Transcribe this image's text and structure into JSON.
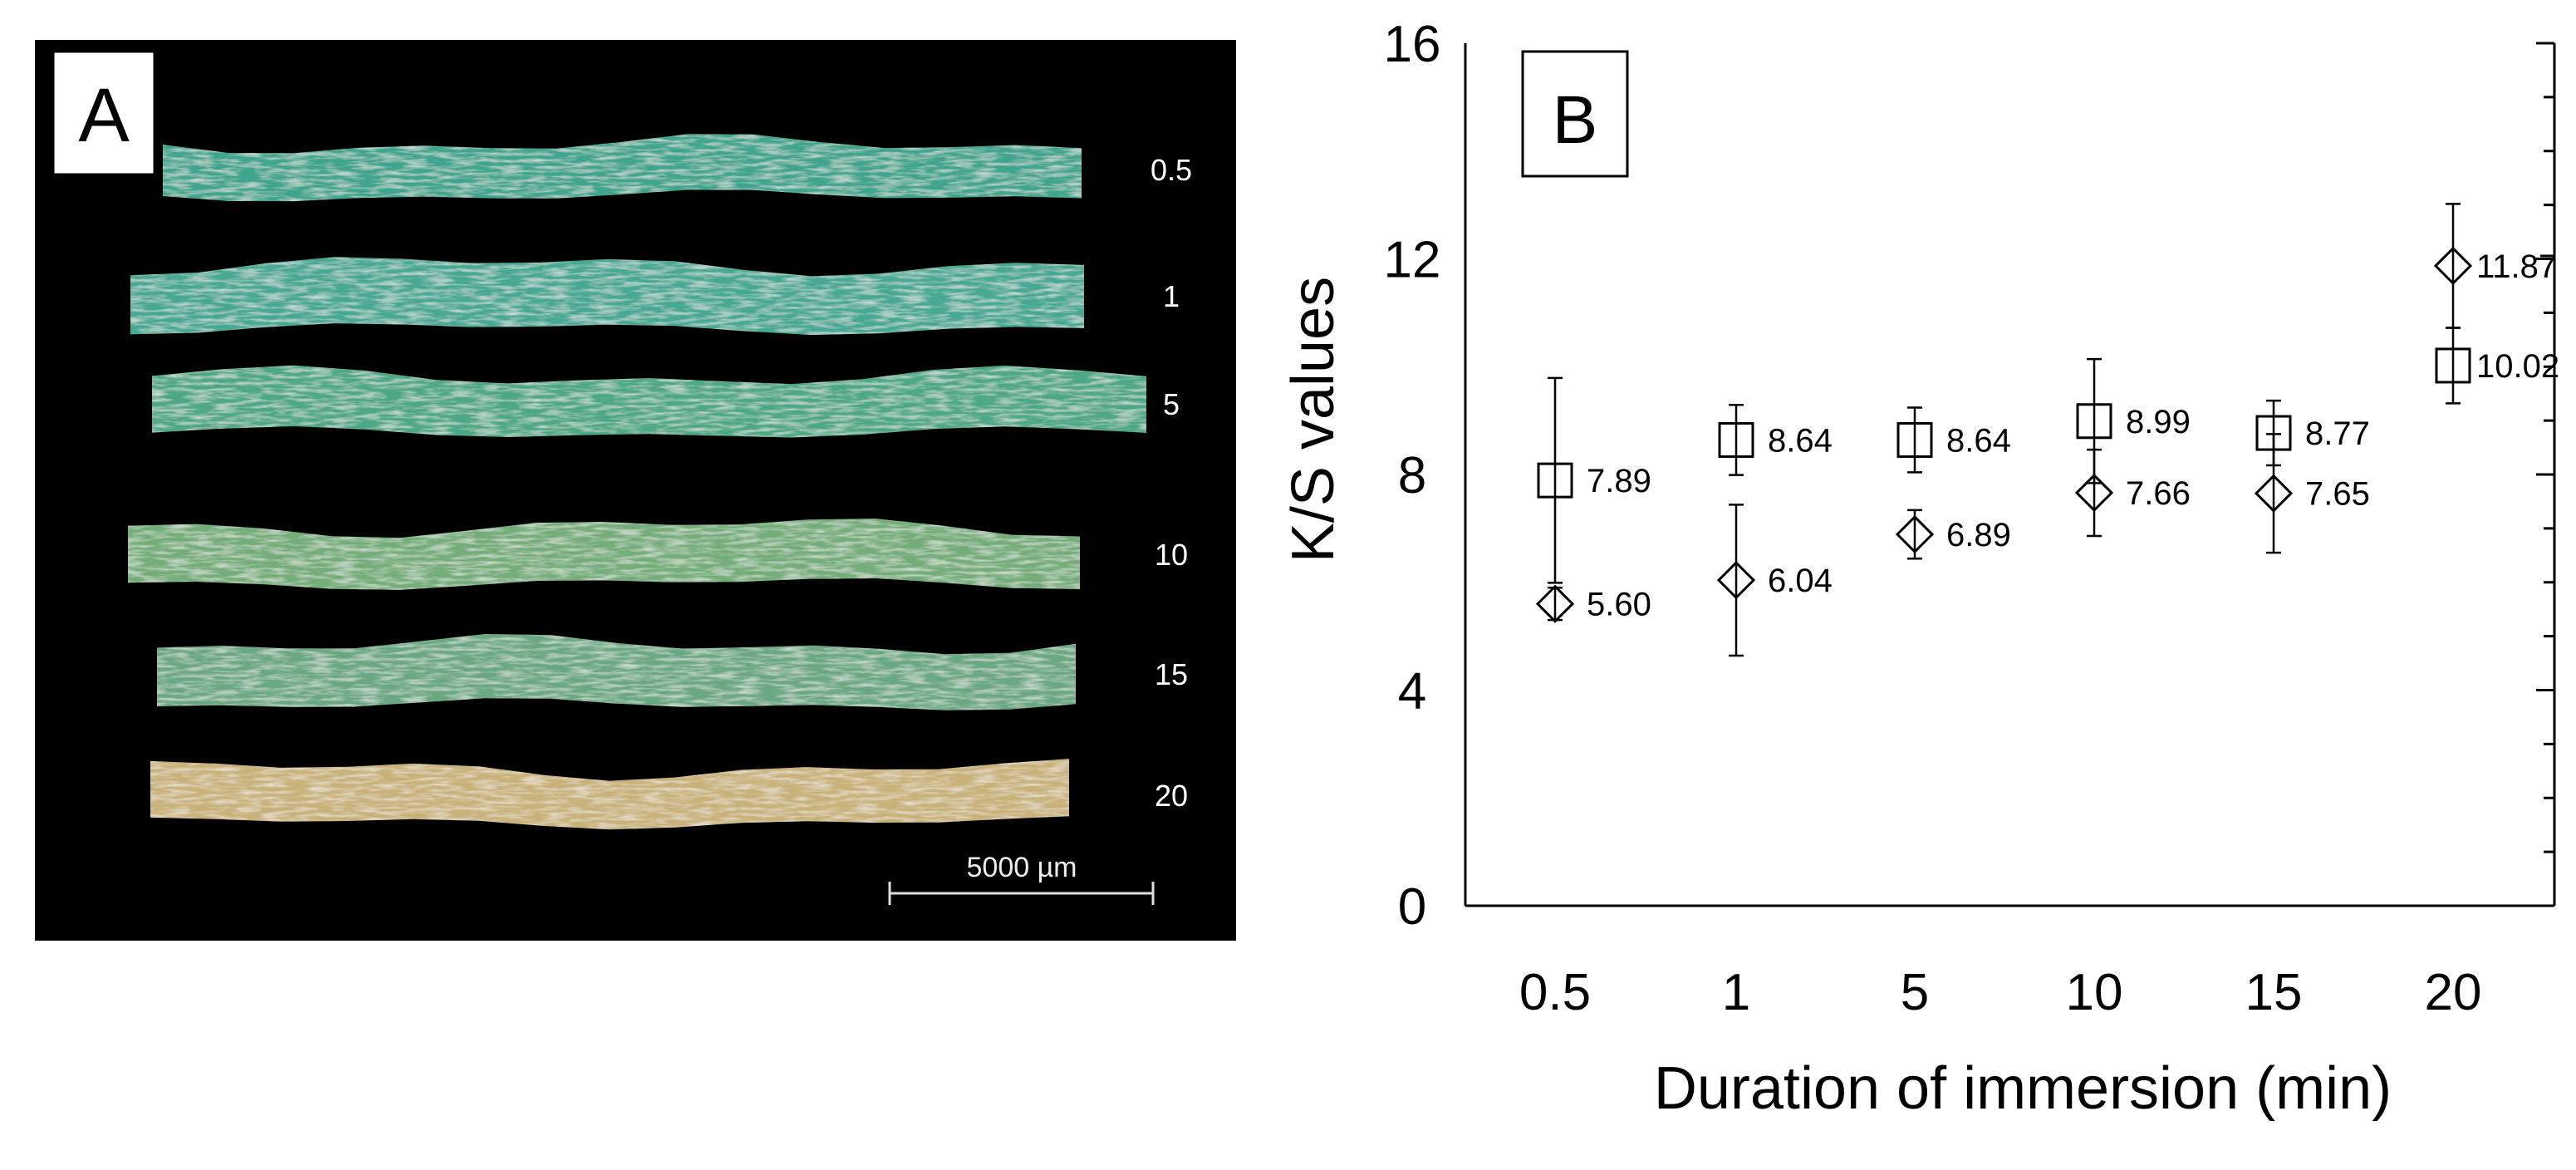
{
  "panel_a": {
    "label": "A",
    "background_color": "#000000",
    "yarns": [
      {
        "label": "0.5",
        "color": "#3fa58e"
      },
      {
        "label": "1",
        "color": "#46a994"
      },
      {
        "label": "5",
        "color": "#4ea885"
      },
      {
        "label": "10",
        "color": "#74ad7a"
      },
      {
        "label": "15",
        "color": "#6aa882"
      },
      {
        "label": "20",
        "color": "#c9b27a"
      }
    ],
    "scale_bar_label": "5000 µm"
  },
  "panel_b": {
    "label": "B"
  },
  "chart_data": {
    "type": "scatter",
    "xlabel": "Duration of immersion (min)",
    "ylabel": "K/S values",
    "categories": [
      "0.5",
      "1",
      "5",
      "10",
      "15",
      "20"
    ],
    "ylim": [
      0,
      16
    ],
    "yticks": [
      0,
      4,
      8,
      12,
      16
    ],
    "grid": false,
    "legend": "none",
    "series": [
      {
        "marker": "square",
        "values": [
          7.89,
          8.64,
          8.64,
          8.99,
          8.77,
          10.02
        ],
        "labels": [
          "7.89",
          "8.64",
          "8.64",
          "8.99",
          "8.77",
          "10.02"
        ],
        "error": [
          1.9,
          0.65,
          0.6,
          1.15,
          0.6,
          0.7
        ]
      },
      {
        "marker": "diamond",
        "values": [
          5.6,
          6.04,
          6.89,
          7.66,
          7.65,
          11.87
        ],
        "labels": [
          "5.60",
          "6.04",
          "6.89",
          "7.66",
          "7.65",
          "11.87"
        ],
        "error": [
          0.3,
          1.4,
          0.45,
          0.8,
          1.1,
          1.15
        ]
      }
    ]
  }
}
